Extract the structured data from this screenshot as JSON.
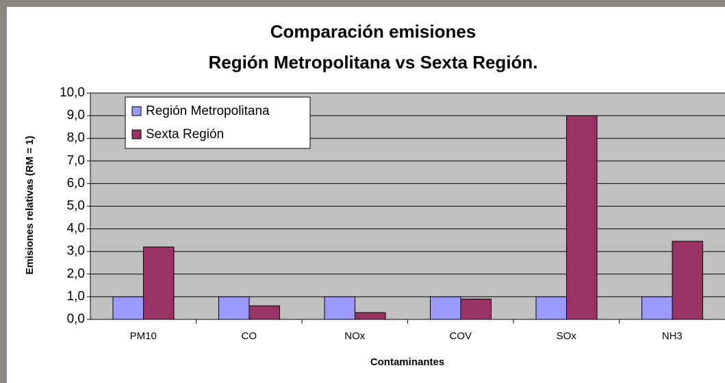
{
  "chart_data": {
    "type": "bar",
    "title": [
      "Comparación emisiones",
      "Región Metropolitana vs Sexta Región."
    ],
    "x_label": "Contaminantes",
    "y_label": "Emisiones relativas (RM = 1)",
    "categories": [
      "PM10",
      "CO",
      "NOx",
      "COV",
      "SOx",
      "NH3"
    ],
    "series": [
      {
        "name": "Región Metropolitana",
        "color": "#9999ff",
        "values": [
          1,
          1,
          1,
          1,
          1,
          1
        ]
      },
      {
        "name": "Sexta Región",
        "color": "#993366",
        "values": [
          3.2,
          0.6,
          0.3,
          0.9,
          9.0,
          3.45
        ]
      }
    ],
    "ylim": [
      0,
      10
    ],
    "yticks": [
      {
        "value": 0,
        "label": "0,0"
      },
      {
        "value": 1,
        "label": "1,0"
      },
      {
        "value": 2,
        "label": "2,0"
      },
      {
        "value": 3,
        "label": "3,0"
      },
      {
        "value": 4,
        "label": "4,0"
      },
      {
        "value": 5,
        "label": "5,0"
      },
      {
        "value": 6,
        "label": "6,0"
      },
      {
        "value": 7,
        "label": "7,0"
      },
      {
        "value": 8,
        "label": "8,0"
      },
      {
        "value": 9,
        "label": "9,0"
      },
      {
        "value": 10,
        "label": "10,0"
      }
    ],
    "grid": true,
    "legend": "top-left",
    "plot_background": "#c0c0c0"
  }
}
